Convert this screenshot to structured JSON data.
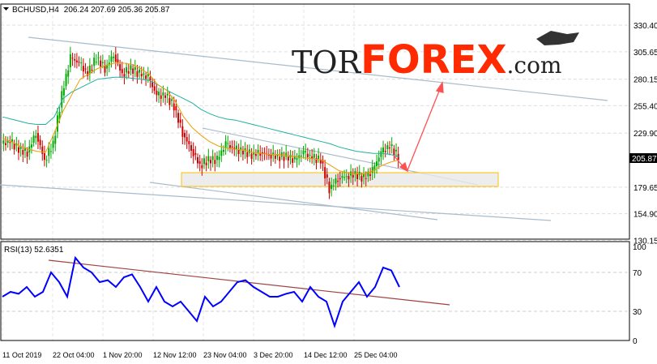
{
  "header": {
    "symbol": "BCHUSD,H4",
    "ohlc": "206.24 207.69 205.36 205.87"
  },
  "logo": {
    "text_dark": "TOR",
    "text_red": "FOREX",
    "text_suffix": ".com"
  },
  "rsi": {
    "label": "RSI(13) 52.6351"
  },
  "colors": {
    "bull": "#00aa00",
    "bear": "#d00000",
    "ma_fast": "#e8a000",
    "ma_slow": "#20b0a0",
    "rsi": "#0000ff",
    "channel": "#a8bccc",
    "rsi_trend": "#a04040",
    "arrow": "#ff5050",
    "zone": "#ffc000"
  },
  "chart_data": [
    {
      "type": "candlestick",
      "title": "BCHUSD,H4",
      "y_ticks": [
        "330.40",
        "305.65",
        "280.15",
        "255.40",
        "229.90",
        "179.65",
        "154.90",
        "130.15"
      ],
      "last_price": "205.87",
      "ylim": [
        130.15,
        330.4
      ],
      "x_ticks": [
        "11 Oct 2019",
        "22 Oct 04:00",
        "1 Nov 20:00",
        "12 Nov 12:00",
        "23 Nov 04:00",
        "3 Dec 20:00",
        "14 Dec 12:00",
        "25 Dec 04:00"
      ],
      "close": [
        220,
        222,
        215,
        212,
        230,
        205,
        220,
        265,
        300,
        295,
        285,
        300,
        290,
        303,
        285,
        290,
        285,
        282,
        265,
        265,
        255,
        230,
        215,
        200,
        205,
        205,
        220,
        215,
        213,
        210,
        212,
        210,
        208,
        208,
        205,
        212,
        207,
        205,
        178,
        188,
        190,
        192,
        188,
        195,
        212,
        218,
        208
      ],
      "ma_fast": [
        225,
        222,
        218,
        215,
        213,
        212,
        230,
        250,
        265,
        280,
        285,
        290,
        293,
        295,
        295,
        294,
        290,
        285,
        275,
        270,
        260,
        245,
        235,
        228,
        222,
        218,
        216,
        215,
        214,
        212,
        211,
        210,
        210,
        209,
        208,
        207,
        206,
        205,
        200,
        195,
        193,
        192,
        192,
        195,
        200,
        203,
        205
      ],
      "ma_slow": [
        245,
        243,
        241,
        239,
        238,
        238,
        245,
        262,
        268,
        272,
        276,
        280,
        281,
        282,
        282,
        281,
        280,
        279,
        275,
        270,
        266,
        262,
        258,
        252,
        248,
        245,
        243,
        242,
        240,
        238,
        236,
        234,
        232,
        230,
        228,
        226,
        224,
        222,
        220,
        217,
        215,
        213,
        212,
        211,
        211,
        210,
        208
      ],
      "support_zone": [
        180,
        193
      ]
    },
    {
      "type": "line",
      "title": "RSI(13)",
      "ylim": [
        0,
        100
      ],
      "y_ticks": [
        "100",
        "70",
        "30",
        "0"
      ],
      "values": [
        45,
        50,
        48,
        55,
        45,
        50,
        70,
        60,
        45,
        85,
        75,
        70,
        60,
        62,
        55,
        65,
        68,
        55,
        40,
        55,
        40,
        35,
        40,
        30,
        20,
        45,
        35,
        40,
        50,
        60,
        62,
        55,
        50,
        45,
        45,
        48,
        50,
        40,
        55,
        45,
        40,
        15,
        40,
        50,
        60,
        45,
        55,
        75,
        72,
        55
      ]
    }
  ]
}
